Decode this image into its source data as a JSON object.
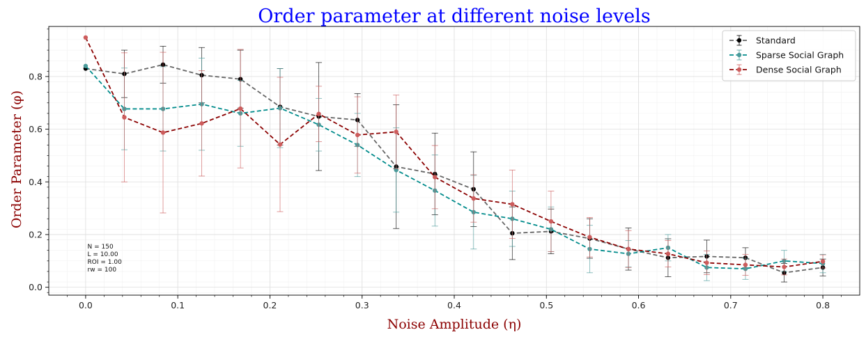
{
  "chart_data": {
    "type": "line",
    "title": "Order parameter at different noise levels",
    "xlabel": "Noise Amplitude (η)",
    "ylabel": "Order Parameter (φ)",
    "xlim": [
      -0.04,
      0.84
    ],
    "ylim": [
      -0.03,
      0.99
    ],
    "xticks": [
      0.0,
      0.1,
      0.2,
      0.3,
      0.4,
      0.5,
      0.6,
      0.7,
      0.8
    ],
    "yticks": [
      0.0,
      0.2,
      0.4,
      0.6,
      0.8
    ],
    "grid": true,
    "legend_position": "top-right",
    "annotation": [
      "N = 150",
      "L = 10.00",
      "ROI = 1.00",
      "rw = 100"
    ],
    "x": [
      0.0,
      0.042,
      0.084,
      0.126,
      0.168,
      0.211,
      0.253,
      0.295,
      0.337,
      0.379,
      0.421,
      0.463,
      0.505,
      0.547,
      0.589,
      0.632,
      0.674,
      0.716,
      0.758,
      0.8
    ],
    "series": [
      {
        "name": "Standard",
        "color": "#666666",
        "marker_color": "#000000",
        "values": [
          0.83,
          0.81,
          0.845,
          0.805,
          0.79,
          0.685,
          0.648,
          0.635,
          0.458,
          0.43,
          0.372,
          0.205,
          0.212,
          0.185,
          0.145,
          0.112,
          0.117,
          0.112,
          0.055,
          0.075
        ],
        "errors": [
          0.0,
          0.09,
          0.07,
          0.105,
          0.11,
          0.145,
          0.205,
          0.1,
          0.235,
          0.155,
          0.142,
          0.1,
          0.085,
          0.075,
          0.08,
          0.072,
          0.062,
          0.038,
          0.035,
          0.032
        ]
      },
      {
        "name": "Sparse Social Graph",
        "color": "#008b8b",
        "marker_color": "#4a9a9a",
        "values": [
          0.84,
          0.677,
          0.677,
          0.695,
          0.66,
          0.68,
          0.617,
          0.54,
          0.445,
          0.367,
          0.285,
          0.26,
          0.22,
          0.145,
          0.127,
          0.15,
          0.075,
          0.07,
          0.1,
          0.09
        ],
        "errors": [
          0.0,
          0.155,
          0.16,
          0.175,
          0.125,
          0.15,
          0.1,
          0.12,
          0.16,
          0.135,
          0.14,
          0.105,
          0.085,
          0.09,
          0.05,
          0.05,
          0.05,
          0.04,
          0.04,
          0.035
        ]
      },
      {
        "name": "Dense Social Graph",
        "color": "#8b0000",
        "marker_color": "#cd5c5c",
        "values": [
          0.948,
          0.645,
          0.587,
          0.622,
          0.678,
          0.542,
          0.658,
          0.578,
          0.59,
          0.418,
          0.337,
          0.315,
          0.25,
          0.19,
          0.145,
          0.127,
          0.093,
          0.085,
          0.077,
          0.098
        ],
        "errors": [
          0.0,
          0.245,
          0.305,
          0.2,
          0.225,
          0.255,
          0.105,
          0.145,
          0.14,
          0.12,
          0.09,
          0.13,
          0.115,
          0.075,
          0.07,
          0.05,
          0.045,
          0.04,
          0.03,
          0.025
        ]
      }
    ]
  }
}
